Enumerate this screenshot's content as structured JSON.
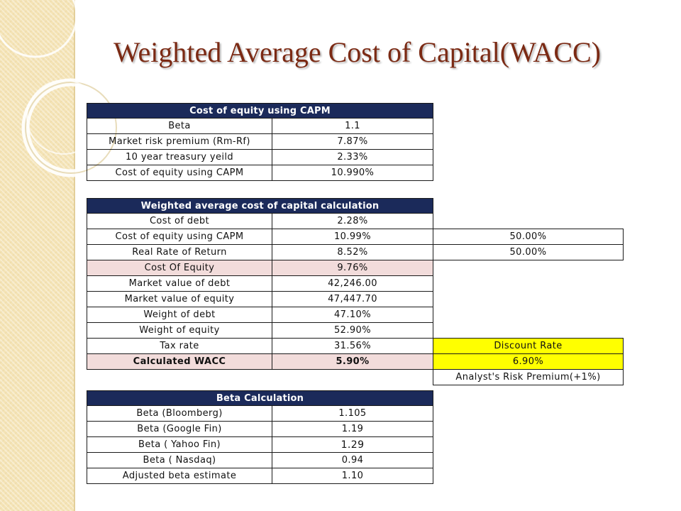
{
  "slide": {
    "title": "Weighted Average Cost of Capital(WACC)"
  },
  "capm_table": {
    "header": "Cost of equity using CAPM",
    "rows": [
      {
        "label": "Beta",
        "value": "1.1"
      },
      {
        "label": "Market risk premium (Rm-Rf)",
        "value": "7.87%"
      },
      {
        "label": "10 year treasury yeild",
        "value": "2.33%"
      },
      {
        "label": "Cost of equity using CAPM",
        "value": "10.990%"
      }
    ]
  },
  "wacc_table": {
    "header": "Weighted average cost of capital calculation",
    "rows": [
      {
        "label": "Cost of debt",
        "value": "2.28%",
        "extra": ""
      },
      {
        "label": "Cost of equity using CAPM",
        "value": "10.99%",
        "extra": "50.00%"
      },
      {
        "label": "Real Rate of Return",
        "value": "8.52%",
        "extra": "50.00%"
      },
      {
        "label": "Cost Of Equity",
        "value": "9.76%",
        "extra": ""
      },
      {
        "label": "Market value of debt",
        "value": "42,246.00",
        "extra": ""
      },
      {
        "label": "Market value of equity",
        "value": "47,447.70",
        "extra": ""
      },
      {
        "label": "Weight of debt",
        "value": "47.10%",
        "extra": ""
      },
      {
        "label": "Weight of equity",
        "value": "52.90%",
        "extra": ""
      },
      {
        "label": "Tax rate",
        "value": "31.56%",
        "extra": "Discount Rate"
      },
      {
        "label": "Calculated WACC",
        "value": "5.90%",
        "extra": "6.90%"
      },
      {
        "label": "",
        "value": "",
        "extra": "Analyst's Risk Premium(+1%)"
      }
    ]
  },
  "beta_table": {
    "header": "Beta Calculation",
    "rows": [
      {
        "label": "Beta (Bloomberg)",
        "value": "1.105"
      },
      {
        "label": "Beta (Google Fin)",
        "value": "1.19"
      },
      {
        "label": "Beta ( Yahoo Fin)",
        "value": "1.29"
      },
      {
        "label": "Beta ( Nasdaq)",
        "value": "0.94"
      },
      {
        "label": "Adjusted beta estimate",
        "value": "1.10"
      }
    ]
  },
  "colors": {
    "title": "#7b2a14",
    "header_fill": "#1b2a5a",
    "highlight_pink": "#f2dcdb",
    "highlight_yellow": "#ffff00",
    "sidebar": "#f4e3b5"
  }
}
